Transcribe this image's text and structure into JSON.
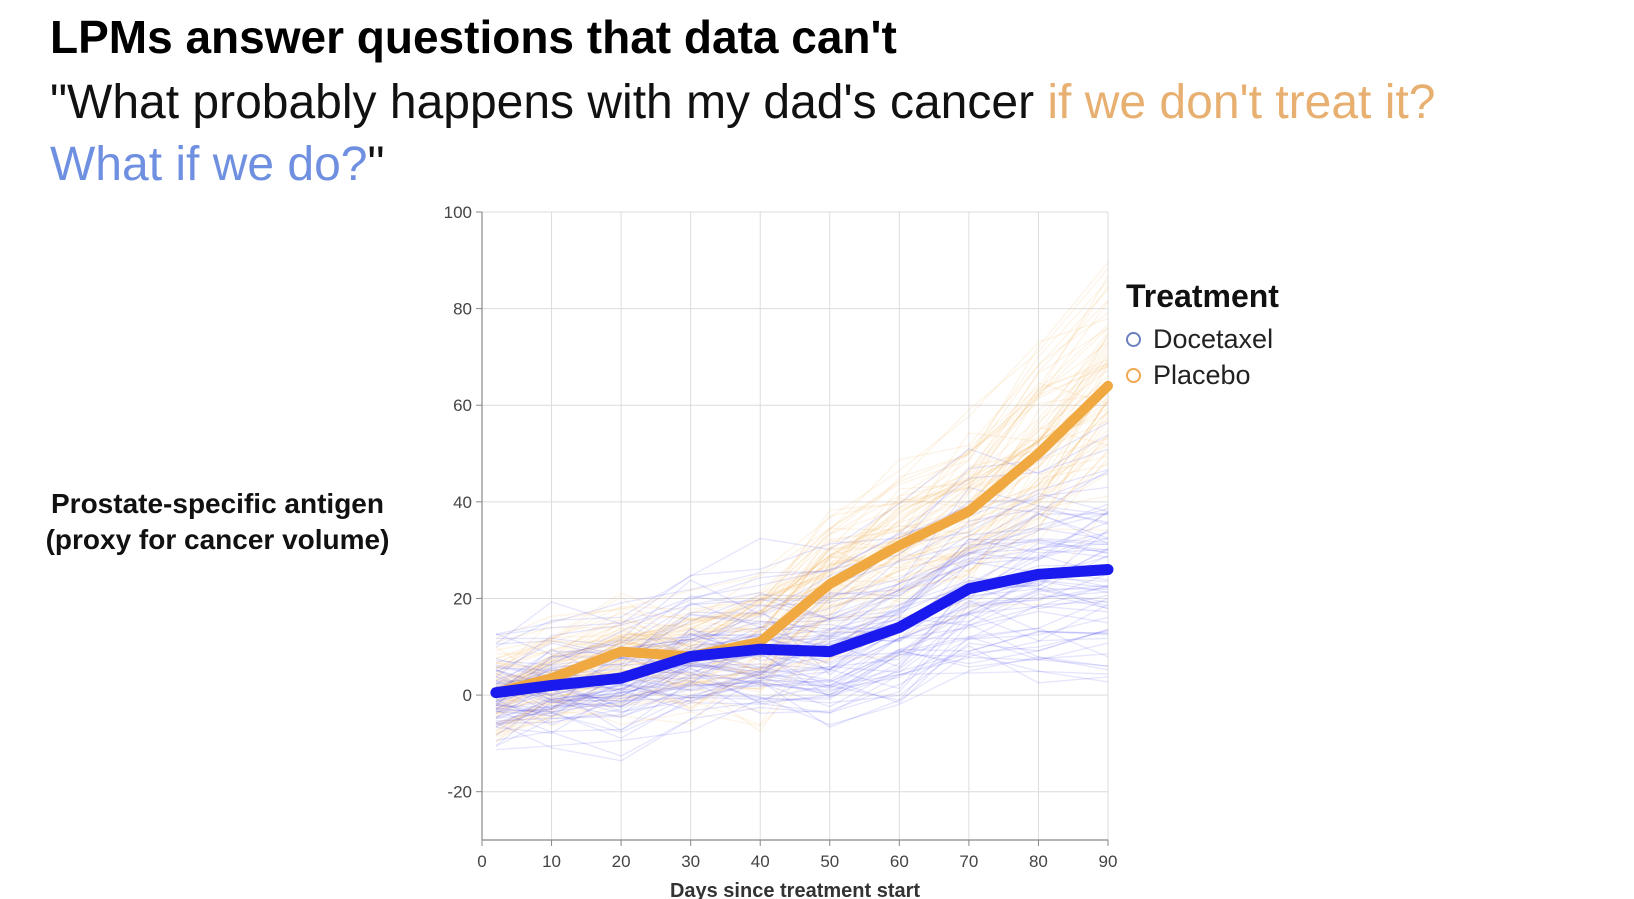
{
  "slide": {
    "title": "LPMs answer questions that data can't",
    "question_part1": "\"What probably happens with my dad's cancer ",
    "question_orange": "if we don't treat it?",
    "question_blue": "What if we do?",
    "question_end": "\""
  },
  "chart_data": {
    "type": "line",
    "title": "",
    "xlabel": "Days since treatment start",
    "ylabel": "Prostate-specific antigen\n(proxy for cancer volume)",
    "ylabel_line1": "Prostate-specific antigen",
    "ylabel_line2": "(proxy for cancer volume)",
    "xlim": [
      0,
      90
    ],
    "ylim": [
      -30,
      100
    ],
    "xticks": [
      0,
      10,
      20,
      30,
      40,
      50,
      60,
      70,
      80,
      90
    ],
    "yticks": [
      -20,
      0,
      20,
      40,
      60,
      80,
      100
    ],
    "grid": true,
    "legend": {
      "title": "Treatment",
      "placement": "right",
      "entries": [
        {
          "label": "Docetaxel",
          "color": "#6b7fc0"
        },
        {
          "label": "Placebo",
          "color": "#f0a850"
        }
      ]
    },
    "x": [
      2,
      10,
      20,
      30,
      40,
      50,
      60,
      70,
      80,
      90
    ],
    "series": [
      {
        "name": "Docetaxel",
        "color": "#1a1aee",
        "values": [
          0.5,
          2,
          3.5,
          8,
          9.5,
          9,
          14,
          22,
          25,
          26
        ]
      },
      {
        "name": "Placebo",
        "color": "#f0a840",
        "values": [
          0.5,
          3.5,
          9,
          8,
          11,
          23,
          31,
          38,
          50,
          64
        ]
      }
    ],
    "sample_lines_per_series": 80,
    "sample_line_opacity": 0.12
  }
}
